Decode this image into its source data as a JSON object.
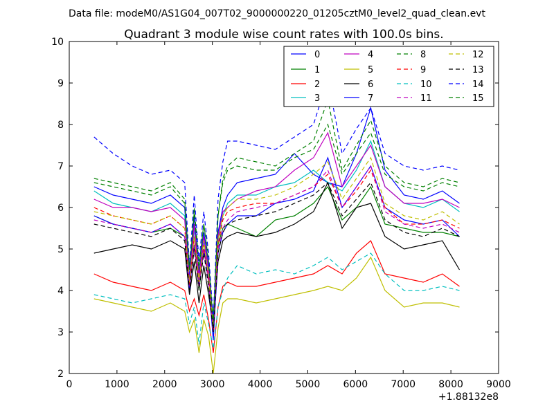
{
  "page_header": "Data file: modeM0/AS1G04_007T02_9000000220_01205cztM0_level2_quad_clean.evt",
  "chart_data": {
    "type": "line",
    "title": "Quadrant 3 module wise count rates with 100.0s bins.",
    "xlabel": "",
    "ylabel": "",
    "x_offset_label": "+1.88132e8",
    "xlim": [
      0,
      9000
    ],
    "ylim": [
      2,
      10
    ],
    "xticks": [
      "0",
      "1000",
      "2000",
      "3000",
      "4000",
      "5000",
      "6000",
      "7000",
      "8000",
      "9000"
    ],
    "yticks": [
      "2",
      "3",
      "4",
      "5",
      "6",
      "7",
      "8",
      "9",
      "10"
    ],
    "grid": false,
    "legend_position": "top-right",
    "x": [
      520,
      920,
      1320,
      1720,
      2120,
      2420,
      2520,
      2620,
      2720,
      2820,
      2920,
      3020,
      3120,
      3220,
      3320,
      3520,
      3920,
      4320,
      4720,
      5120,
      5420,
      5720,
      6020,
      6320,
      6620,
      7020,
      7420,
      7820,
      8180
    ],
    "series": [
      {
        "name": "0",
        "color": "#0000ff",
        "dash": false,
        "values": [
          6.5,
          6.3,
          6.2,
          6.1,
          6.3,
          6.0,
          4.3,
          5.8,
          4.4,
          5.4,
          4.6,
          3.0,
          5.4,
          6.0,
          6.3,
          6.6,
          6.7,
          6.8,
          7.3,
          6.8,
          6.6,
          6.5,
          7.3,
          8.4,
          6.9,
          6.3,
          6.2,
          6.4,
          6.1
        ]
      },
      {
        "name": "1",
        "color": "#008000",
        "dash": false,
        "values": [
          5.8,
          5.6,
          5.5,
          5.4,
          5.5,
          5.3,
          4.1,
          5.1,
          4.0,
          5.0,
          4.2,
          3.4,
          5.1,
          5.5,
          5.6,
          5.5,
          5.3,
          5.7,
          5.8,
          6.1,
          6.5,
          5.7,
          6.0,
          6.5,
          5.6,
          5.5,
          5.4,
          5.4,
          5.3
        ]
      },
      {
        "name": "2",
        "color": "#ff0000",
        "dash": false,
        "values": [
          4.4,
          4.2,
          4.1,
          4.0,
          4.2,
          4.0,
          3.5,
          3.8,
          3.4,
          3.9,
          3.3,
          2.5,
          3.6,
          4.1,
          4.2,
          4.1,
          4.1,
          4.2,
          4.3,
          4.4,
          4.6,
          4.4,
          4.9,
          5.2,
          4.4,
          4.3,
          4.2,
          4.4,
          4.1
        ]
      },
      {
        "name": "3",
        "color": "#00bfbf",
        "dash": false,
        "values": [
          6.4,
          6.1,
          6.0,
          5.9,
          6.1,
          5.8,
          4.1,
          5.5,
          4.2,
          5.2,
          4.4,
          2.9,
          5.2,
          5.8,
          6.1,
          6.3,
          6.3,
          6.5,
          6.6,
          6.9,
          6.6,
          6.4,
          6.9,
          7.6,
          6.5,
          6.1,
          6.0,
          6.2,
          5.9
        ]
      },
      {
        "name": "4",
        "color": "#bf00bf",
        "dash": false,
        "values": [
          6.2,
          6.0,
          6.0,
          5.9,
          6.0,
          5.7,
          4.2,
          5.6,
          4.3,
          5.3,
          4.5,
          3.2,
          5.3,
          5.9,
          6.0,
          6.2,
          6.4,
          6.5,
          6.9,
          7.2,
          7.8,
          6.5,
          7.0,
          7.5,
          6.5,
          6.1,
          6.1,
          6.2,
          6.0
        ]
      },
      {
        "name": "5",
        "color": "#bfbf00",
        "dash": false,
        "values": [
          3.8,
          3.7,
          3.6,
          3.5,
          3.7,
          3.5,
          3.0,
          3.3,
          2.5,
          3.3,
          2.9,
          2.0,
          3.1,
          3.7,
          3.8,
          3.8,
          3.7,
          3.8,
          3.9,
          4.0,
          4.1,
          4.0,
          4.3,
          4.8,
          4.0,
          3.6,
          3.7,
          3.7,
          3.6
        ]
      },
      {
        "name": "6",
        "color": "#000000",
        "dash": false,
        "values": [
          4.9,
          5.0,
          5.1,
          5.0,
          5.2,
          5.0,
          3.9,
          4.7,
          3.7,
          4.6,
          3.9,
          3.1,
          4.7,
          5.2,
          5.3,
          5.4,
          5.3,
          5.4,
          5.6,
          5.9,
          6.6,
          5.5,
          6.0,
          6.1,
          5.3,
          5.0,
          5.1,
          5.2,
          4.5
        ]
      },
      {
        "name": "7",
        "color": "#0000ff",
        "dash": false,
        "values": [
          5.8,
          5.6,
          5.5,
          5.4,
          5.6,
          5.3,
          4.0,
          5.1,
          4.1,
          5.0,
          4.2,
          2.8,
          4.9,
          5.4,
          5.6,
          5.8,
          5.8,
          6.1,
          6.2,
          6.4,
          7.2,
          6.0,
          6.5,
          7.0,
          6.0,
          5.7,
          5.6,
          5.7,
          5.3
        ]
      },
      {
        "name": "8",
        "color": "#008000",
        "dash": true,
        "values": [
          6.7,
          6.6,
          6.5,
          6.4,
          6.6,
          6.2,
          4.5,
          6.0,
          4.6,
          5.6,
          4.8,
          3.2,
          5.8,
          6.7,
          7.0,
          7.2,
          7.1,
          7.0,
          7.3,
          7.6,
          8.6,
          6.9,
          7.5,
          8.1,
          7.0,
          6.6,
          6.5,
          6.7,
          6.6
        ]
      },
      {
        "name": "9",
        "color": "#ff0000",
        "dash": true,
        "values": [
          6.0,
          5.8,
          5.7,
          5.6,
          5.8,
          5.5,
          4.1,
          5.3,
          4.1,
          5.1,
          4.3,
          3.0,
          5.1,
          5.7,
          5.9,
          6.0,
          6.1,
          6.1,
          6.3,
          6.5,
          6.8,
          6.0,
          6.4,
          6.9,
          6.0,
          5.6,
          5.6,
          5.7,
          5.5
        ]
      },
      {
        "name": "10",
        "color": "#00bfbf",
        "dash": true,
        "values": [
          3.9,
          3.8,
          3.7,
          3.8,
          3.9,
          3.8,
          3.2,
          3.6,
          2.7,
          3.7,
          3.2,
          2.6,
          3.6,
          4.0,
          4.3,
          4.6,
          4.4,
          4.5,
          4.4,
          4.6,
          4.8,
          4.5,
          4.7,
          4.9,
          4.4,
          4.0,
          4.0,
          4.1,
          4.0
        ]
      },
      {
        "name": "11",
        "color": "#bf00bf",
        "dash": true,
        "values": [
          5.7,
          5.6,
          5.5,
          5.4,
          5.6,
          5.3,
          4.1,
          5.1,
          4.1,
          5.0,
          4.2,
          3.1,
          5.0,
          5.5,
          5.7,
          5.9,
          6.0,
          6.1,
          6.3,
          6.5,
          6.9,
          6.0,
          6.5,
          7.0,
          5.9,
          5.6,
          5.5,
          5.6,
          5.4
        ]
      },
      {
        "name": "12",
        "color": "#bfbf00",
        "dash": true,
        "values": [
          5.9,
          5.8,
          5.7,
          5.6,
          5.8,
          5.5,
          4.2,
          5.3,
          4.2,
          5.2,
          4.3,
          3.1,
          5.2,
          5.8,
          6.0,
          6.2,
          6.2,
          6.3,
          6.5,
          6.8,
          7.1,
          6.2,
          6.7,
          7.2,
          6.1,
          5.8,
          5.7,
          5.9,
          5.6
        ]
      },
      {
        "name": "13",
        "color": "#000000",
        "dash": true,
        "values": [
          5.6,
          5.5,
          5.4,
          5.3,
          5.5,
          5.2,
          4.0,
          5.0,
          4.0,
          4.9,
          4.1,
          3.0,
          4.9,
          5.4,
          5.6,
          5.7,
          5.8,
          5.9,
          6.1,
          6.3,
          6.6,
          5.8,
          6.2,
          6.6,
          5.7,
          5.4,
          5.3,
          5.5,
          5.3
        ]
      },
      {
        "name": "14",
        "color": "#0000ff",
        "dash": true,
        "values": [
          7.7,
          7.3,
          7.0,
          6.8,
          6.9,
          6.6,
          4.6,
          6.3,
          4.7,
          5.9,
          4.9,
          3.3,
          6.2,
          7.1,
          7.6,
          7.6,
          7.5,
          7.4,
          7.7,
          8.0,
          9.1,
          7.3,
          7.9,
          8.4,
          7.3,
          7.0,
          6.9,
          7.0,
          6.9
        ]
      },
      {
        "name": "15",
        "color": "#008000",
        "dash": true,
        "values": [
          6.6,
          6.5,
          6.4,
          6.3,
          6.5,
          6.1,
          4.5,
          5.9,
          4.5,
          5.6,
          4.7,
          3.2,
          5.8,
          6.6,
          6.9,
          7.0,
          6.9,
          6.9,
          7.2,
          7.4,
          8.0,
          6.8,
          7.3,
          7.8,
          6.8,
          6.5,
          6.4,
          6.6,
          6.5
        ]
      }
    ]
  }
}
